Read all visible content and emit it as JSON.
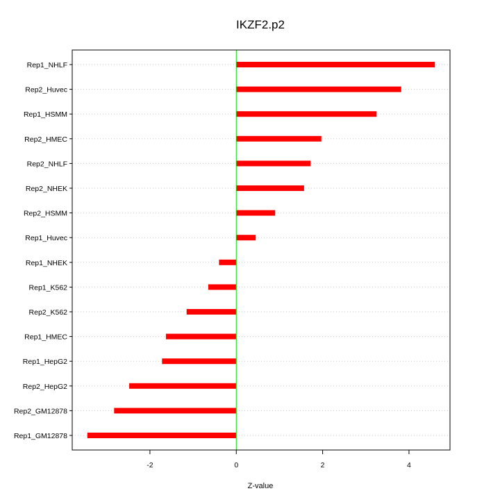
{
  "chart_data": {
    "type": "bar",
    "orientation": "horizontal",
    "title": "IKZF2.p2",
    "xlabel": "Z-value",
    "ylabel": "",
    "categories": [
      "Rep1_NHLF",
      "Rep2_Huvec",
      "Rep1_HSMM",
      "Rep2_HMEC",
      "Rep2_NHLF",
      "Rep2_NHEK",
      "Rep2_HSMM",
      "Rep1_Huvec",
      "Rep1_NHEK",
      "Rep1_K562",
      "Rep2_K562",
      "Rep1_HMEC",
      "Rep1_HepG2",
      "Rep2_HepG2",
      "Rep2_GM12878",
      "Rep1_GM12878"
    ],
    "values": [
      4.6,
      3.82,
      3.25,
      1.97,
      1.72,
      1.57,
      0.9,
      0.45,
      -0.4,
      -0.65,
      -1.15,
      -1.63,
      -1.72,
      -2.48,
      -2.83,
      -3.45
    ],
    "xlim": [
      -3.8,
      4.95
    ],
    "xticks": [
      "-2",
      "0",
      "2",
      "4"
    ],
    "xtick_values": [
      -2,
      0,
      2,
      4
    ],
    "grid": "horizontal dotted",
    "reference_line": 0,
    "colors": {
      "bar": "#ff0000",
      "reference": "#00dd00",
      "grid": "#c8c8c8",
      "axis": "#000000"
    }
  }
}
